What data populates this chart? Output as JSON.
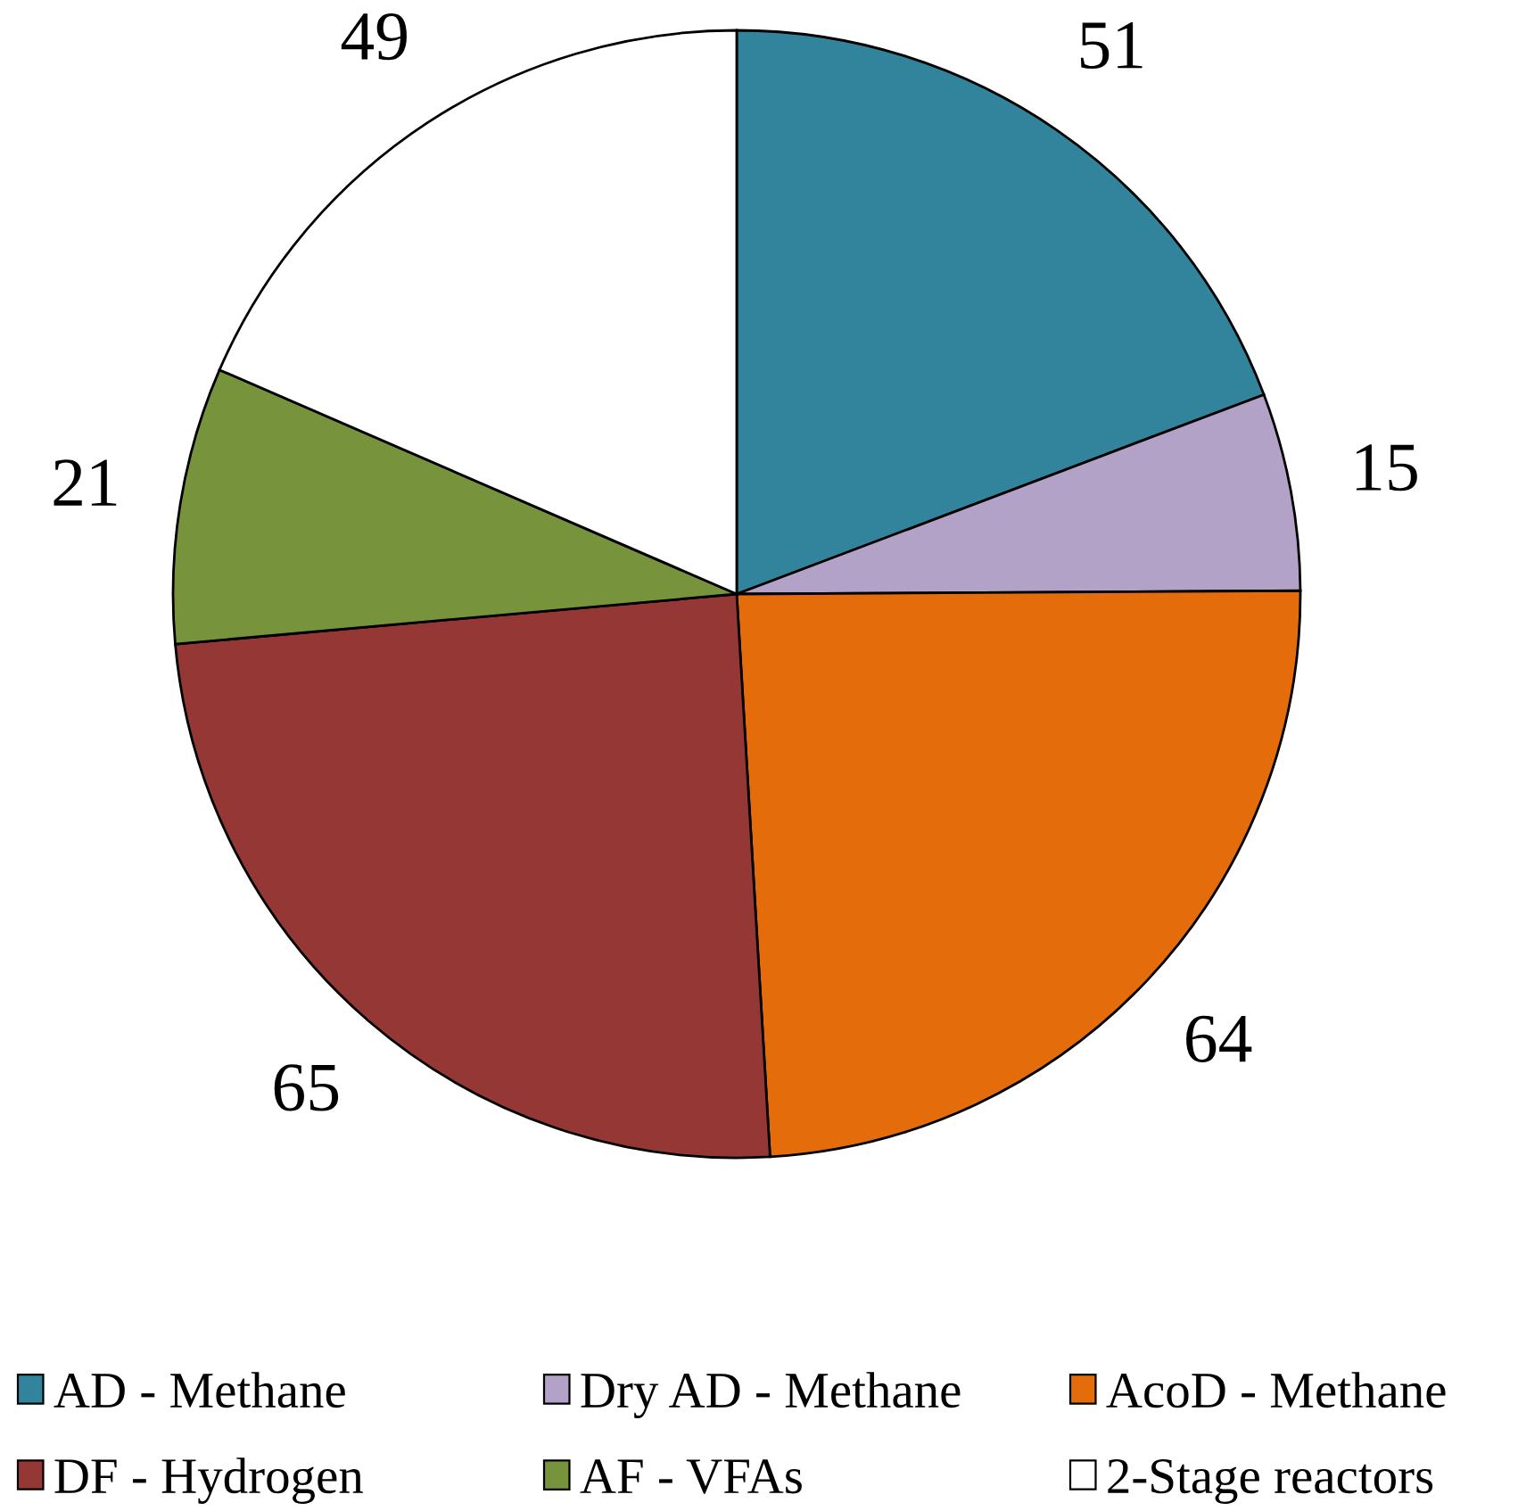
{
  "chart_data": {
    "type": "pie",
    "categories": [
      "AD - Methane",
      "Dry AD - Methane",
      "AcoD - Methane",
      "DF - Hydrogen",
      "AF - VFAs",
      "2-Stage reactors"
    ],
    "values": [
      51,
      15,
      64,
      65,
      21,
      49
    ],
    "colors": [
      "#31849b",
      "#b3a2c7",
      "#e46c0a",
      "#953735",
      "#77933c",
      "#ffffff"
    ],
    "data_labels": true,
    "legend": "bottom"
  }
}
